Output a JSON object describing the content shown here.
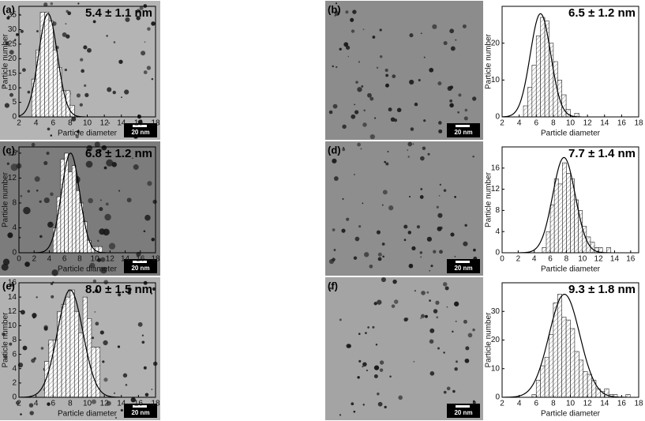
{
  "panels": [
    {
      "label": "(a)",
      "scale_bar": "20 nm"
    },
    {
      "label": "(b)",
      "scale_bar": "20 nm"
    },
    {
      "label": "(c)",
      "scale_bar": "20 nm"
    },
    {
      "label": "(d)",
      "scale_bar": "20 nm"
    },
    {
      "label": "(e)",
      "scale_bar": "20 nm"
    },
    {
      "label": "(f)",
      "scale_bar": "20 nm"
    }
  ],
  "chart_data": [
    {
      "type": "histogram",
      "annotation": "5.4 ± 1.1 nm",
      "x_label": "Particle diameter",
      "y_label": "Particle number",
      "bins": [
        3.5,
        4,
        4.5,
        5,
        5.5,
        6,
        6.5,
        7,
        7.5,
        8,
        8.5
      ],
      "values": [
        13,
        23,
        36,
        36,
        33,
        23,
        17,
        9,
        9,
        4
      ],
      "fit": {
        "mean": 5.4,
        "sigma": 1.1,
        "amplitude": 35.5
      },
      "xlim": [
        2,
        18
      ],
      "xticks": [
        2,
        4,
        6,
        8,
        10,
        12,
        14,
        16,
        18
      ],
      "ylim": [
        0,
        38
      ],
      "yticks": [
        0,
        5,
        10,
        15,
        20,
        25,
        30,
        35
      ]
    },
    {
      "type": "histogram",
      "annotation": "6.5 ± 1.2 nm",
      "x_label": "Particle diameter",
      "y_label": "Particle number",
      "bins": [
        4.5,
        5,
        5.5,
        6,
        6.5,
        7,
        7.5,
        8,
        8.5,
        9,
        9.5,
        10,
        10.5,
        11
      ],
      "values": [
        3,
        8,
        14,
        22,
        27,
        26,
        20,
        15,
        10,
        6,
        2,
        0,
        1
      ],
      "fit": {
        "mean": 6.5,
        "sigma": 1.2,
        "amplitude": 28
      },
      "xlim": [
        2,
        18
      ],
      "xticks": [
        2,
        4,
        6,
        8,
        10,
        12,
        14,
        16,
        18
      ],
      "ylim": [
        0,
        30
      ],
      "yticks": [
        0,
        10,
        20
      ]
    },
    {
      "type": "histogram",
      "annotation": "6.8 ± 1.2 nm",
      "x_label": "Particle diameter",
      "y_label": "Particle number",
      "bins": [
        4.5,
        5,
        5.5,
        6,
        6.5,
        7,
        7.5,
        8,
        8.5,
        9,
        9.5,
        10,
        10.5,
        11
      ],
      "values": [
        4,
        9,
        15,
        16,
        13,
        14,
        10,
        8,
        5,
        2,
        1,
        1,
        1
      ],
      "fit": {
        "mean": 6.8,
        "sigma": 1.2,
        "amplitude": 16
      },
      "xlim": [
        0,
        18
      ],
      "xticks": [
        0,
        2,
        4,
        6,
        8,
        10,
        12,
        14,
        16,
        18
      ],
      "ylim": [
        0,
        17
      ],
      "yticks": [
        0,
        4,
        8,
        12,
        16
      ]
    },
    {
      "type": "histogram",
      "annotation": "7.7 ± 1.4 nm",
      "x_label": "Particle diameter",
      "y_label": "Particle number",
      "bins": [
        5,
        5.5,
        6,
        6.5,
        7,
        7.5,
        8,
        8.5,
        9,
        9.5,
        10,
        10.5,
        11,
        11.5,
        12,
        12.5,
        13,
        13.5
      ],
      "values": [
        1,
        4,
        9,
        14,
        13,
        17,
        15,
        14,
        10,
        8,
        5,
        3,
        2,
        1,
        1,
        0,
        1
      ],
      "fit": {
        "mean": 7.7,
        "sigma": 1.4,
        "amplitude": 18
      },
      "xlim": [
        0,
        17
      ],
      "xticks": [
        0,
        2,
        4,
        6,
        8,
        10,
        12,
        14,
        16
      ],
      "ylim": [
        0,
        20
      ],
      "yticks": [
        0,
        4,
        8,
        12,
        16
      ]
    },
    {
      "type": "histogram",
      "annotation": "8.0 ± 1.5 nm",
      "x_label": "Particle diameter",
      "y_label": "Particle number",
      "bins": [
        5,
        5.5,
        6,
        6.5,
        7,
        7.5,
        8,
        8.5,
        9,
        9.5,
        10,
        10.5,
        11,
        11.5
      ],
      "values": [
        5,
        8,
        8,
        12,
        13,
        14,
        15,
        12,
        9,
        14,
        11,
        7,
        7
      ],
      "fit": {
        "mean": 8.0,
        "sigma": 1.5,
        "amplitude": 15
      },
      "xlim": [
        2,
        18
      ],
      "xticks": [
        2,
        4,
        6,
        8,
        10,
        12,
        14,
        16,
        18
      ],
      "ylim": [
        0,
        16
      ],
      "yticks": [
        0,
        2,
        4,
        6,
        8,
        10,
        12,
        14,
        16
      ]
    },
    {
      "type": "histogram",
      "annotation": "9.3 ± 1.8 nm",
      "x_label": "Particle diameter",
      "y_label": "Particle number",
      "bins": [
        5.5,
        6,
        6.5,
        7,
        7.5,
        8,
        8.5,
        9,
        9.5,
        10,
        10.5,
        11,
        11.5,
        12,
        12.5,
        13,
        13.5,
        14,
        14.5,
        15,
        15.5,
        16,
        16.5,
        17
      ],
      "values": [
        1,
        6,
        11,
        14,
        22,
        33,
        36,
        28,
        27,
        24,
        16,
        13,
        9,
        8,
        6,
        3,
        2,
        3,
        1,
        1,
        0,
        0,
        1
      ],
      "fit": {
        "mean": 9.3,
        "sigma": 1.8,
        "amplitude": 36
      },
      "xlim": [
        2,
        18
      ],
      "xticks": [
        2,
        4,
        6,
        8,
        10,
        12,
        14,
        16,
        18
      ],
      "ylim": [
        0,
        40
      ],
      "yticks": [
        0,
        10,
        20,
        30
      ]
    }
  ]
}
